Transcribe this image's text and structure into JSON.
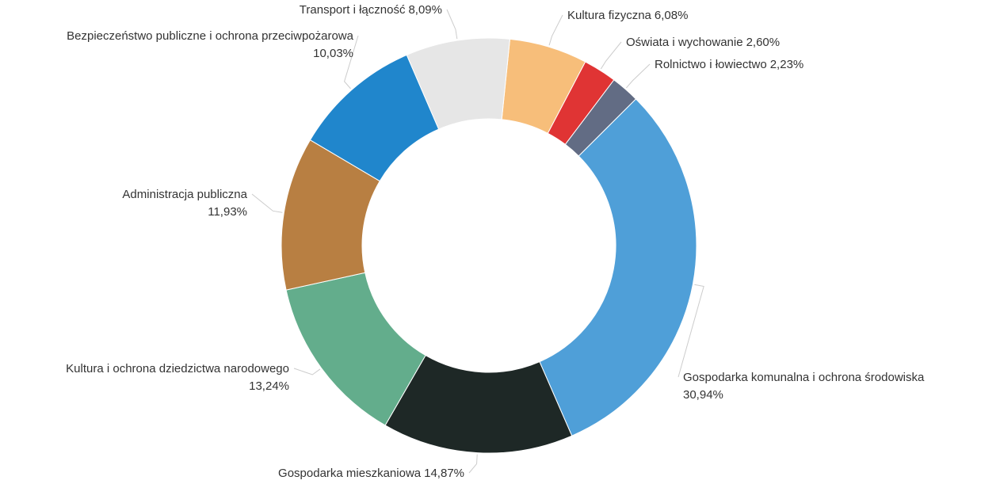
{
  "chart_data": {
    "type": "donut",
    "categories": [
      "Kultura fizyczna",
      "Oświata i wychowanie",
      "Rolnictwo i łowiectwo",
      "Gospodarka komunalna i ochrona środowiska",
      "Gospodarka mieszkaniowa",
      "Kultura i ochrona dziedzictwa narodowego",
      "Administracja publiczna",
      "Bezpieczeństwo publiczne i ochrona przeciwpożarowa",
      "Transport i łączność"
    ],
    "values": [
      6.08,
      2.6,
      2.23,
      30.94,
      14.87,
      13.24,
      11.93,
      10.03,
      8.09
    ],
    "value_labels": [
      "6,08%",
      "2,60%",
      "2,23%",
      "30,94%",
      "14,87%",
      "13,24%",
      "11,93%",
      "10,03%",
      "8,09%"
    ],
    "colors": [
      "#f7be7a",
      "#e03434",
      "#626c84",
      "#4f9fd8",
      "#1e2826",
      "#63ad8c",
      "#b87f42",
      "#2086cc",
      "#e6e6e6"
    ]
  }
}
